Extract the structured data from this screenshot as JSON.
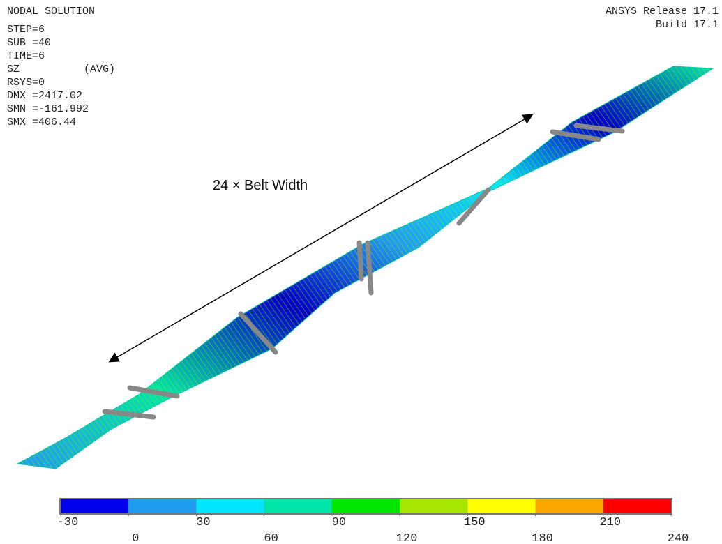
{
  "header": {
    "title": "NODAL SOLUTION",
    "release": "ANSYS Release 17.1",
    "build": "Build 17.1"
  },
  "info": [
    "STEP=6",
    "SUB =40",
    "TIME=6",
    "SZ",
    "RSYS=0",
    "DMX =2417.02",
    "SMN =-161.992",
    "SMX =406.44"
  ],
  "avg_label": "(AVG)",
  "annotation": "24 × Belt Width",
  "legend": {
    "colors": [
      "#0000f0",
      "#1e9cf0",
      "#00e6ff",
      "#00e6a8",
      "#00e600",
      "#a6e600",
      "#ffff00",
      "#ffa500",
      "#ff0000"
    ],
    "ticks": [
      -30,
      0,
      30,
      60,
      90,
      120,
      150,
      180,
      210,
      240
    ]
  }
}
